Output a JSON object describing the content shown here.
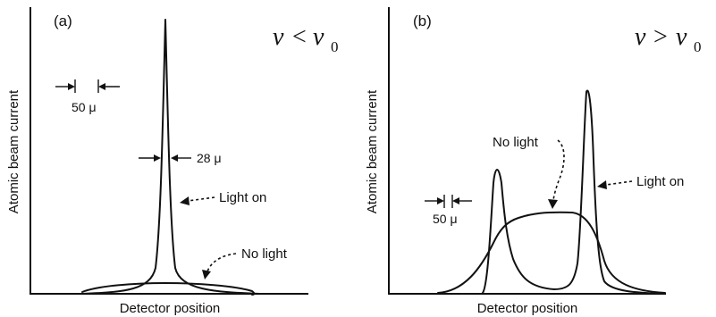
{
  "panel_a": {
    "label": "(a)",
    "condition": {
      "sym1": "ν",
      "op": "<",
      "sym2": "ν",
      "sub": "0"
    },
    "y_axis_label": "Atomic beam current",
    "x_axis_label": "Detector position",
    "scale_bar_label": "50 μ",
    "width_label": "28 μ",
    "light_on_label": "Light on",
    "no_light_label": "No light"
  },
  "panel_b": {
    "label": "(b)",
    "condition": {
      "sym1": "ν",
      "op": ">",
      "sym2": "ν",
      "sub": "0"
    },
    "y_axis_label": "Atomic beam current",
    "x_axis_label": "Detector position",
    "scale_bar_label": "50 μ",
    "no_light_label": "No light",
    "light_on_label": "Light on"
  }
}
